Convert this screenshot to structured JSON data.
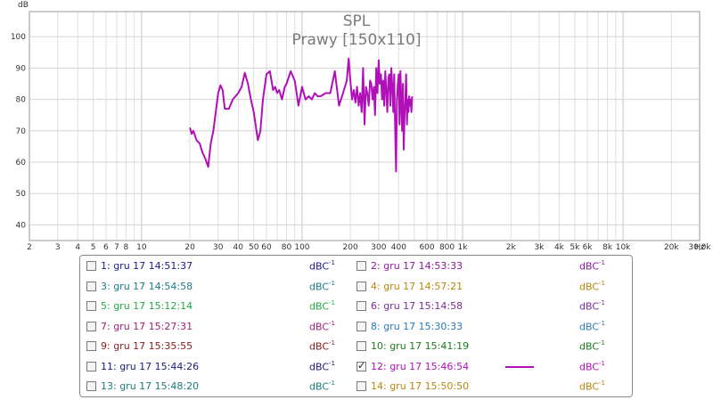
{
  "chart_data": {
    "type": "line",
    "title": "SPL",
    "subtitle": "Prawy [150x110]",
    "ylabel": "dB",
    "xlabel_unit": "Hz",
    "x_scale": "log",
    "xlim": [
      2,
      30000
    ],
    "ylim": [
      35,
      108
    ],
    "grid": true,
    "y_ticks": [
      40,
      50,
      60,
      70,
      80,
      90,
      100
    ],
    "x_ticks": [
      {
        "v": 2,
        "label": "2"
      },
      {
        "v": 3,
        "label": "3"
      },
      {
        "v": 4,
        "label": "4"
      },
      {
        "v": 5,
        "label": "5"
      },
      {
        "v": 6,
        "label": "6"
      },
      {
        "v": 7,
        "label": "7"
      },
      {
        "v": 8,
        "label": "8"
      },
      {
        "v": 10,
        "label": "10"
      },
      {
        "v": 20,
        "label": "20"
      },
      {
        "v": 30,
        "label": "30"
      },
      {
        "v": 40,
        "label": "40"
      },
      {
        "v": 50,
        "label": "50"
      },
      {
        "v": 60,
        "label": "60"
      },
      {
        "v": 80,
        "label": "80"
      },
      {
        "v": 100,
        "label": "100"
      },
      {
        "v": 200,
        "label": "200"
      },
      {
        "v": 300,
        "label": "300"
      },
      {
        "v": 400,
        "label": "400"
      },
      {
        "v": 600,
        "label": "600"
      },
      {
        "v": 800,
        "label": "800"
      },
      {
        "v": 1000,
        "label": "1k"
      },
      {
        "v": 2000,
        "label": "2k"
      },
      {
        "v": 3000,
        "label": "3k"
      },
      {
        "v": 4000,
        "label": "4k"
      },
      {
        "v": 5000,
        "label": "5k"
      },
      {
        "v": 6000,
        "label": "6k"
      },
      {
        "v": 8000,
        "label": "8k"
      },
      {
        "v": 10000,
        "label": "10k"
      },
      {
        "v": 20000,
        "label": "20k"
      },
      {
        "v": 30000,
        "label": "30,0k"
      }
    ],
    "series": [
      {
        "name": "12: gru 17 15:46:54",
        "color": "#b010b8",
        "x": [
          20,
          20.5,
          21,
          22,
          23,
          24,
          25,
          26,
          27,
          28,
          30,
          31,
          32,
          33,
          35,
          37,
          40,
          42,
          44,
          46,
          48,
          50,
          53,
          55,
          57,
          60,
          63,
          66,
          68,
          70,
          72,
          75,
          78,
          80,
          85,
          90,
          95,
          100,
          105,
          110,
          115,
          120,
          125,
          130,
          140,
          150,
          160,
          170,
          180,
          190,
          195,
          200,
          205,
          210,
          215,
          220,
          225,
          230,
          235,
          240,
          245,
          250,
          255,
          260,
          265,
          270,
          275,
          280,
          285,
          290,
          295,
          300,
          305,
          310,
          315,
          320,
          325,
          330,
          340,
          345,
          350,
          355,
          360,
          365,
          370,
          375,
          380,
          385,
          390,
          395,
          400,
          405,
          410,
          415,
          420,
          425,
          430,
          435,
          440,
          445,
          450,
          455,
          460,
          465,
          470,
          475,
          480,
          485
        ],
        "y": [
          71,
          69,
          70,
          67,
          66,
          63,
          61,
          58.5,
          66,
          70,
          82,
          84.5,
          83,
          77,
          77,
          80,
          82,
          84,
          88.5,
          85,
          80,
          76,
          67,
          70,
          80,
          88,
          89,
          83,
          84,
          82,
          83,
          80,
          84,
          85,
          89,
          86,
          78,
          84,
          80,
          81,
          80,
          82,
          81,
          81,
          82,
          82,
          89,
          78,
          82,
          86,
          93,
          86,
          80,
          83,
          79,
          84,
          78,
          82,
          76,
          90,
          72,
          84,
          82,
          78,
          86,
          85,
          80,
          84,
          75,
          90,
          82,
          92.5,
          85,
          88,
          80,
          86,
          78,
          89,
          76,
          87,
          88,
          78,
          90,
          84,
          76,
          88,
          72,
          57,
          80,
          85,
          88,
          72,
          89,
          80,
          70,
          85,
          64,
          75,
          80,
          88,
          72,
          80,
          76,
          81,
          78,
          80,
          76,
          81
        ]
      }
    ]
  },
  "legend": {
    "items": [
      {
        "label": "1: gru 17 14:51:37",
        "color": "#1a1a8c",
        "checked": false,
        "unit": "dBC",
        "sup": "-1"
      },
      {
        "label": "2: gru 17 14:53:33",
        "color": "#8a1a9a",
        "checked": false,
        "unit": "dBC",
        "sup": "-1"
      },
      {
        "label": "3: gru 17 14:54:58",
        "color": "#1a7a8a",
        "checked": false,
        "unit": "dBC",
        "sup": "-1"
      },
      {
        "label": "4: gru 17 14:57:21",
        "color": "#b8860b",
        "checked": false,
        "unit": "dBC",
        "sup": "-1"
      },
      {
        "label": "5: gru 17 15:12:14",
        "color": "#22aa44",
        "checked": false,
        "unit": "dBC",
        "sup": "-1"
      },
      {
        "label": "6: gru 17 15:14:58",
        "color": "#7a2a9a",
        "checked": false,
        "unit": "dBC",
        "sup": "-1"
      },
      {
        "label": "7: gru 17 15:27:31",
        "color": "#a0207a",
        "checked": false,
        "unit": "dBC",
        "sup": "-1"
      },
      {
        "label": "8: gru 17 15:30:33",
        "color": "#2a7ab8",
        "checked": false,
        "unit": "dBC",
        "sup": "-1"
      },
      {
        "label": "9: gru 17 15:35:55",
        "color": "#8a1a1a",
        "checked": false,
        "unit": "dBC",
        "sup": "-1"
      },
      {
        "label": "10: gru 17 15:41:19",
        "color": "#1a7a1a",
        "checked": false,
        "unit": "dBC",
        "sup": "-1"
      },
      {
        "label": "11: gru 17 15:44:26",
        "color": "#1a1a7a",
        "checked": false,
        "unit": "dBC",
        "sup": "-1"
      },
      {
        "label": "12: gru 17 15:46:54",
        "color": "#b010b8",
        "checked": true,
        "unit": "dBC",
        "sup": "-1"
      },
      {
        "label": "13: gru 17 15:48:20",
        "color": "#1a7a7a",
        "checked": false,
        "unit": "dBC",
        "sup": "-1"
      },
      {
        "label": "14: gru 17 15:50:50",
        "color": "#b8860b",
        "checked": false,
        "unit": "dBC",
        "sup": "-1"
      }
    ]
  }
}
